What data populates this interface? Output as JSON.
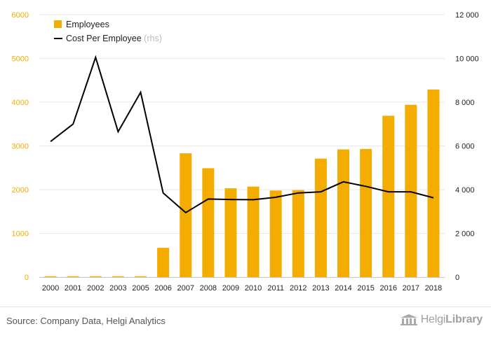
{
  "chart_data": {
    "type": "bar+line",
    "categories": [
      "2000",
      "2001",
      "2002",
      "2003",
      "2005",
      "2006",
      "2007",
      "2008",
      "2009",
      "2010",
      "2011",
      "2012",
      "2013",
      "2014",
      "2015",
      "2016",
      "2017",
      "2018"
    ],
    "series": [
      {
        "name": "Employees",
        "type": "bar",
        "axis": "left",
        "color": "#f5ac00",
        "values": [
          20,
          20,
          20,
          20,
          20,
          670,
          2830,
          2490,
          2030,
          2070,
          1980,
          1990,
          2710,
          2920,
          2930,
          3690,
          3940,
          4290
        ]
      },
      {
        "name": "Cost Per Employee",
        "name_suffix": "(rhs)",
        "type": "line",
        "axis": "right",
        "color": "#000000",
        "values": [
          6200,
          7000,
          10050,
          6650,
          8450,
          3850,
          2950,
          3570,
          3550,
          3540,
          3650,
          3850,
          3900,
          4360,
          4150,
          3900,
          3900,
          3630
        ]
      }
    ],
    "y_left": {
      "min": 0,
      "max": 6000,
      "ticks": [
        "0",
        "1000",
        "2000",
        "3000",
        "4000",
        "5000",
        "6000"
      ],
      "color": "#f5ac00"
    },
    "y_right": {
      "min": 0,
      "max": 12000,
      "ticks": [
        "0",
        "2 000",
        "4 000",
        "6 000",
        "8 000",
        "10 000",
        "12 000"
      ],
      "color": "#222222"
    },
    "grid": true,
    "legend": "top-left"
  },
  "footer": {
    "source": "Source: Company Data, Helgi Analytics",
    "brand_regular": "Helgi",
    "brand_bold": "Library"
  }
}
